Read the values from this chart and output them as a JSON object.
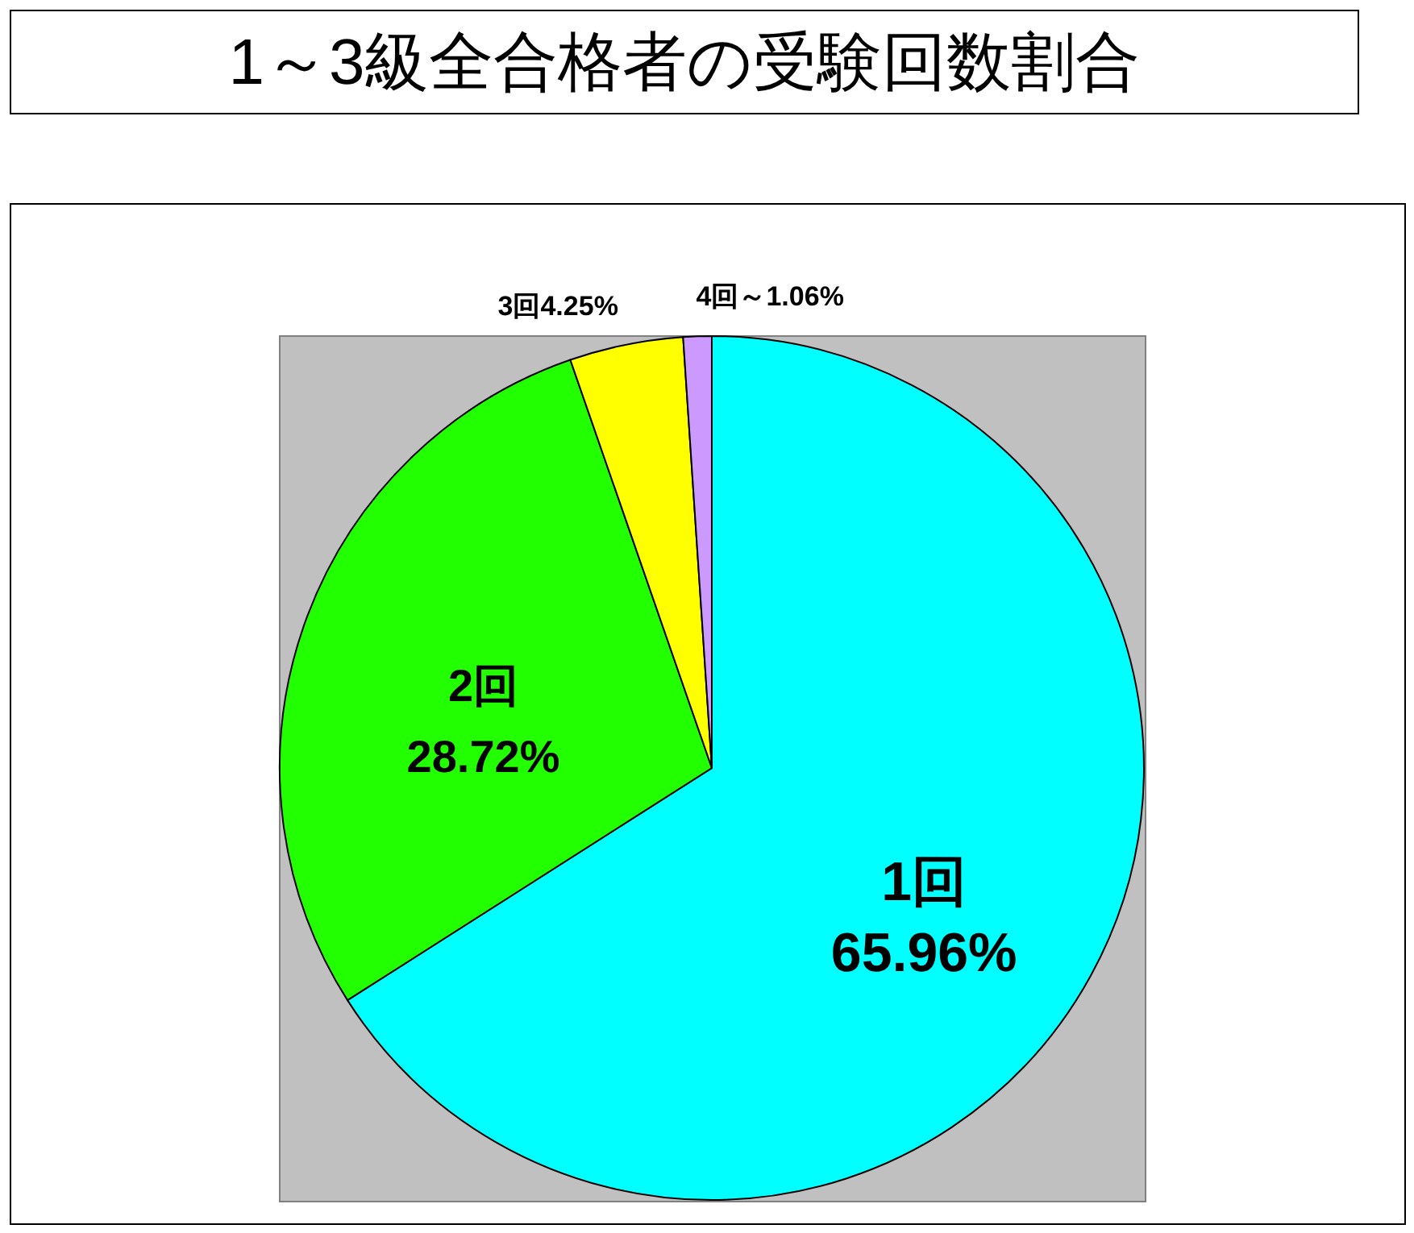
{
  "chart_data": {
    "type": "pie",
    "title": "1～3級全合格者の受験回数割合",
    "categories": [
      "1回",
      "2回",
      "3回",
      "4回～"
    ],
    "values": [
      65.96,
      28.72,
      4.25,
      1.06
    ],
    "colors": [
      "#00ffff",
      "#22ff00",
      "#ffff00",
      "#cc99ff"
    ],
    "value_labels": [
      "65.96%",
      "28.72%",
      "4.25%",
      "1.06%"
    ]
  }
}
